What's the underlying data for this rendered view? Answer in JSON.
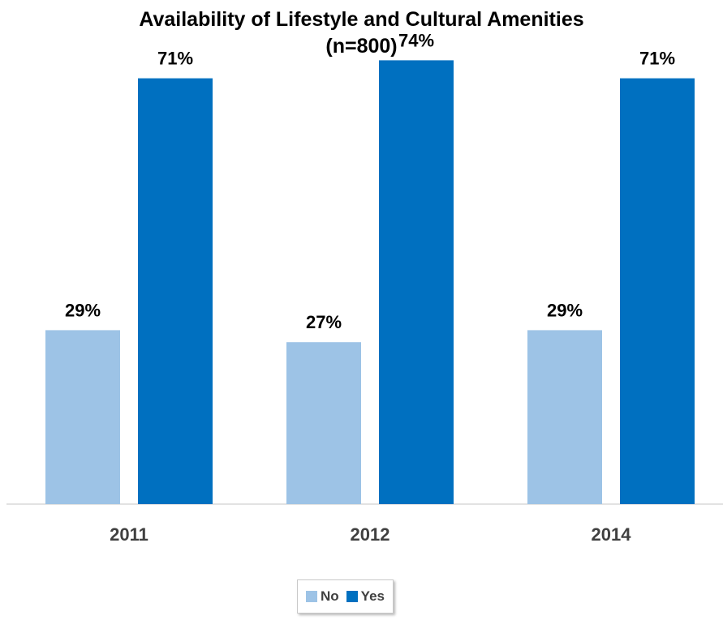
{
  "chart_data": {
    "type": "bar",
    "title_line1": "Availability of Lifestyle and Cultural Amenities",
    "title_line2": "(n=800)",
    "categories": [
      "2011",
      "2012",
      "2014"
    ],
    "series": [
      {
        "name": "No",
        "values": [
          29,
          27,
          29
        ],
        "labels": [
          "29%",
          "27%",
          "29%"
        ],
        "color": "#9dc3e6"
      },
      {
        "name": "Yes",
        "values": [
          71,
          74,
          71
        ],
        "labels": [
          "71%",
          "74%",
          "71%"
        ],
        "color": "#0070c0"
      }
    ],
    "xlabel": "",
    "ylabel": "",
    "ylim": [
      0,
      80
    ],
    "grid": false,
    "legend_position": "bottom"
  }
}
